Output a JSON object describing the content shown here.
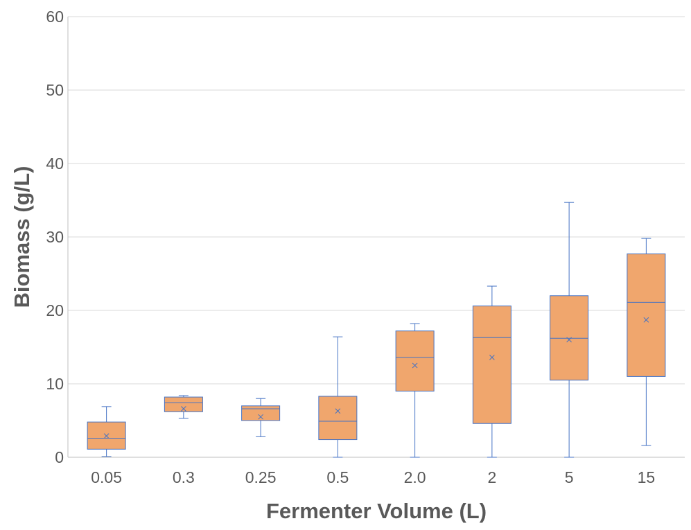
{
  "chart_data": {
    "type": "box",
    "title": "",
    "xlabel": "Fermenter Volume (L)",
    "ylabel": "Biomass (g/L)",
    "ylim": [
      0,
      60
    ],
    "yticks": [
      0,
      10,
      20,
      30,
      40,
      50,
      60
    ],
    "grid": true,
    "legend": "none",
    "categories": [
      "0.05",
      "0.3",
      "0.25",
      "0.5",
      "2.0",
      "2",
      "5",
      "15"
    ],
    "boxes": [
      {
        "category": "0.05",
        "min": 0.1,
        "q1": 1.1,
        "median": 2.6,
        "q3": 4.8,
        "max": 6.9,
        "mean": 2.9
      },
      {
        "category": "0.3",
        "min": 5.3,
        "q1": 6.2,
        "median": 7.4,
        "q3": 8.2,
        "max": 8.4,
        "mean": 6.6
      },
      {
        "category": "0.25",
        "min": 2.8,
        "q1": 5.0,
        "median": 6.6,
        "q3": 7.0,
        "max": 8.0,
        "mean": 5.5
      },
      {
        "category": "0.5",
        "min": 0.0,
        "q1": 2.4,
        "median": 4.9,
        "q3": 8.3,
        "max": 16.4,
        "mean": 6.3
      },
      {
        "category": "2.0",
        "min": 0.0,
        "q1": 9.0,
        "median": 13.6,
        "q3": 17.2,
        "max": 18.2,
        "mean": 12.5
      },
      {
        "category": "2",
        "min": 0.0,
        "q1": 4.6,
        "median": 16.3,
        "q3": 20.6,
        "max": 23.3,
        "mean": 13.6
      },
      {
        "category": "5",
        "min": 0.0,
        "q1": 10.5,
        "median": 16.2,
        "q3": 22.0,
        "max": 34.7,
        "mean": 16.0
      },
      {
        "category": "15",
        "min": 1.6,
        "q1": 11.0,
        "median": 21.1,
        "q3": 27.7,
        "max": 29.8,
        "mean": 18.7
      }
    ],
    "colors": {
      "box_fill": "#f0a66d",
      "box_stroke": "#4472c4",
      "whisker": "#4472c4",
      "grid": "#d9d9d9",
      "axis": "#bfbfbf",
      "text": "#595959"
    }
  }
}
